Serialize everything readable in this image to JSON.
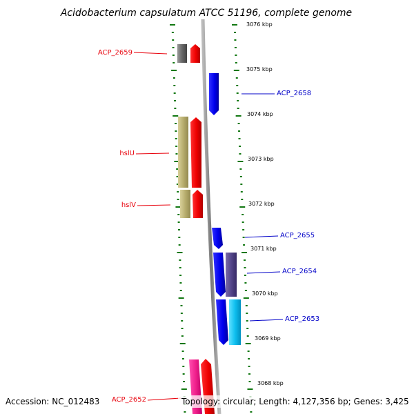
{
  "title": "Acidobacterium capsulatum ATCC 51196, complete genome",
  "footer": {
    "accession": "Accession: NC_012483",
    "summary": "Topology: circular; Length: 4,127,356 bp; Genes: 3,425"
  },
  "colors": {
    "forward_label": "#e8000b",
    "reverse_label": "#0000c8",
    "tick": "#117711",
    "backbone": "#888888"
  },
  "scale_labels": [
    "3076 kbp",
    "3075 kbp",
    "3074 kbp",
    "3073 kbp",
    "3072 kbp",
    "3071 kbp",
    "3070 kbp",
    "3069 kbp",
    "3068 kbp"
  ],
  "gene_labels": [
    {
      "text": "ACP_2659",
      "strand": "left"
    },
    {
      "text": "ACP_2658",
      "strand": "right"
    },
    {
      "text": "hslU",
      "strand": "left"
    },
    {
      "text": "hslV",
      "strand": "left"
    },
    {
      "text": "ACP_2655",
      "strand": "right"
    },
    {
      "text": "ACP_2654",
      "strand": "right"
    },
    {
      "text": "ACP_2653",
      "strand": "right"
    },
    {
      "text": "ACP_2652",
      "strand": "left"
    }
  ]
}
